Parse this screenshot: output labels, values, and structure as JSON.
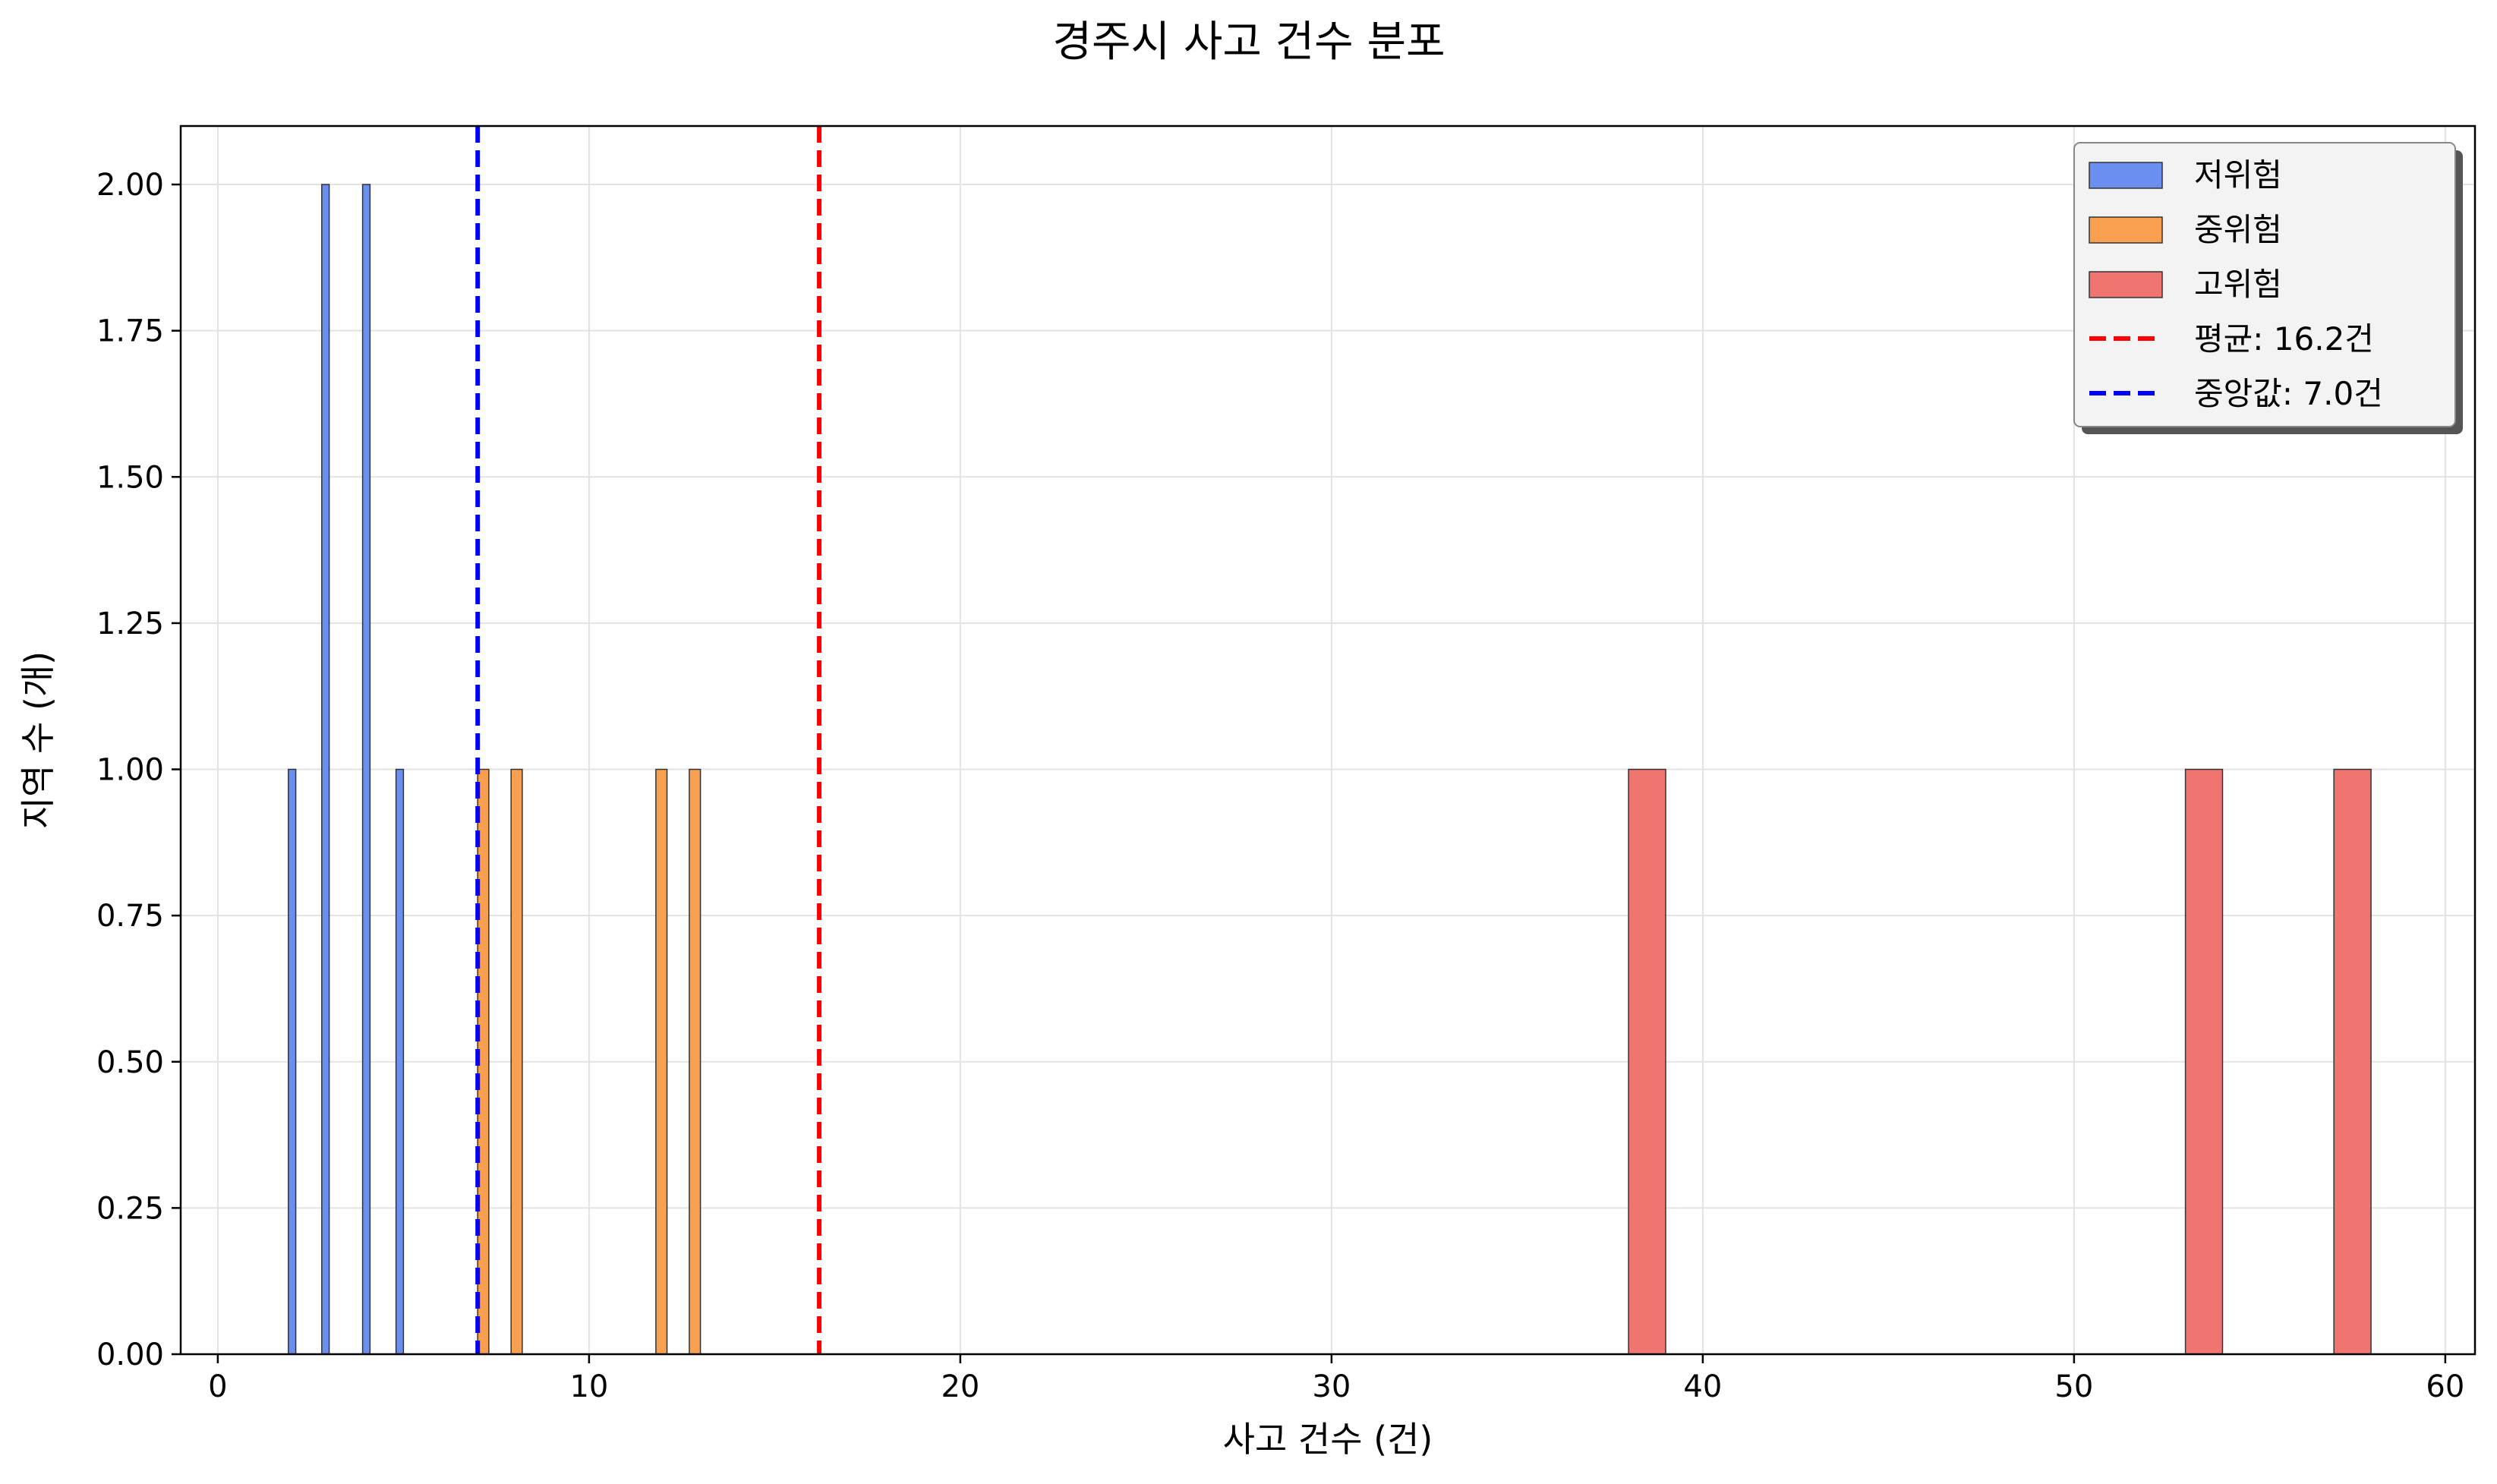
{
  "chart_data": {
    "type": "bar",
    "title": "경주시 사고 건수 분포",
    "xlabel": "사고 건수 (건)",
    "ylabel": "지역 수 (개)",
    "xlim": [
      -1,
      60.8
    ],
    "ylim": [
      0,
      2.1
    ],
    "xticks": [
      0,
      10,
      20,
      30,
      40,
      50,
      60
    ],
    "yticks": [
      0.0,
      0.25,
      0.5,
      0.75,
      1.0,
      1.25,
      1.5,
      1.75,
      2.0
    ],
    "ytick_labels": [
      "0.00",
      "0.25",
      "0.50",
      "0.75",
      "1.00",
      "1.25",
      "1.50",
      "1.75",
      "2.00"
    ],
    "grid": true,
    "legend_position": "top-right",
    "series": [
      {
        "name": "저위험",
        "color": "#6b8ff0",
        "bins": [
          {
            "x0": 1.9,
            "x1": 2.1,
            "count": 1
          },
          {
            "x0": 2.8,
            "x1": 3.0,
            "count": 2
          },
          {
            "x0": 3.9,
            "x1": 4.1,
            "count": 2
          },
          {
            "x0": 4.8,
            "x1": 5.0,
            "count": 1
          }
        ]
      },
      {
        "name": "중위험",
        "color": "#f9a050",
        "bins": [
          {
            "x0": 7.0,
            "x1": 7.3,
            "count": 1
          },
          {
            "x0": 7.9,
            "x1": 8.2,
            "count": 1
          },
          {
            "x0": 11.8,
            "x1": 12.1,
            "count": 1
          },
          {
            "x0": 12.7,
            "x1": 13.0,
            "count": 1
          }
        ]
      },
      {
        "name": "고위험",
        "color": "#f07470",
        "bins": [
          {
            "x0": 38.0,
            "x1": 39.0,
            "count": 1
          },
          {
            "x0": 53.0,
            "x1": 54.0,
            "count": 1
          },
          {
            "x0": 57.0,
            "x1": 58.0,
            "count": 1
          }
        ]
      }
    ],
    "reference_lines": [
      {
        "name": "평균: 16.2건",
        "value": 16.2,
        "color": "#ff0000"
      },
      {
        "name": "중앙값: 7.0건",
        "value": 7.0,
        "color": "#0000ff"
      }
    ]
  }
}
